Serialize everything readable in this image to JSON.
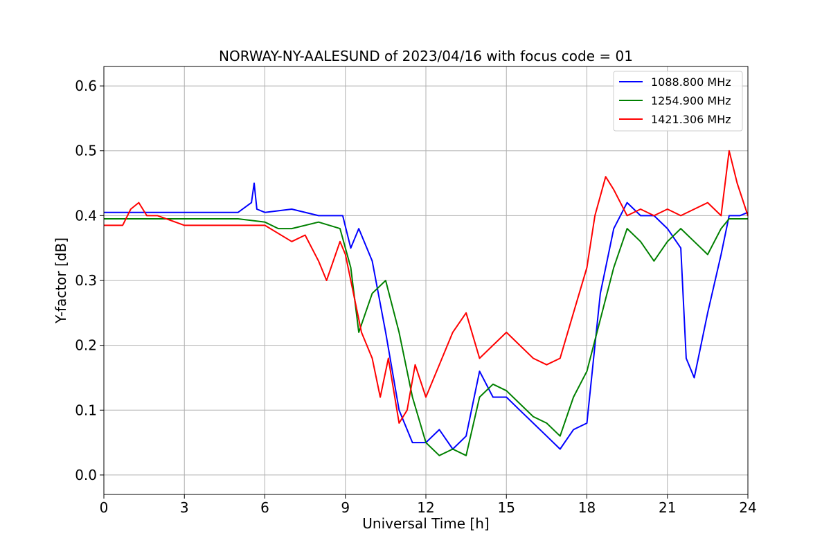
{
  "chart_data": {
    "type": "line",
    "title": "NORWAY-NY-AALESUND of 2023/04/16 with focus code = 01",
    "xlabel": "Universal Time [h]",
    "ylabel": "Y-factor [dB]",
    "xlim": [
      0,
      24
    ],
    "ylim": [
      -0.03,
      0.63
    ],
    "xticks": [
      0,
      3,
      6,
      9,
      12,
      15,
      18,
      21,
      24
    ],
    "yticks": [
      0.0,
      0.1,
      0.2,
      0.3,
      0.4,
      0.5,
      0.6
    ],
    "x_tick_labels": [
      "0",
      "3",
      "6",
      "9",
      "12",
      "15",
      "18",
      "21",
      "24"
    ],
    "y_tick_labels": [
      "0.0",
      "0.1",
      "0.2",
      "0.3",
      "0.4",
      "0.5",
      "0.6"
    ],
    "grid": true,
    "legend_position": "top-right",
    "series": [
      {
        "name": "1088.800 MHz",
        "color": "#0000ff",
        "x": [
          0,
          0.7,
          2.0,
          3.0,
          5.0,
          5.5,
          5.6,
          5.7,
          6.0,
          7.0,
          8.0,
          8.9,
          9.2,
          9.5,
          10.0,
          10.5,
          11.0,
          11.5,
          12.0,
          12.5,
          13.0,
          13.5,
          14.0,
          14.5,
          15.0,
          15.5,
          16.0,
          16.5,
          17.0,
          17.5,
          18.0,
          18.5,
          19.0,
          19.5,
          20.0,
          20.5,
          21.0,
          21.5,
          21.7,
          22.0,
          22.5,
          23.0,
          23.3,
          23.7,
          24.0
        ],
        "y": [
          0.405,
          0.405,
          0.405,
          0.405,
          0.405,
          0.42,
          0.45,
          0.41,
          0.405,
          0.41,
          0.4,
          0.4,
          0.35,
          0.38,
          0.33,
          0.22,
          0.1,
          0.05,
          0.05,
          0.07,
          0.04,
          0.06,
          0.16,
          0.12,
          0.12,
          0.1,
          0.08,
          0.06,
          0.04,
          0.07,
          0.08,
          0.28,
          0.38,
          0.42,
          0.4,
          0.4,
          0.38,
          0.35,
          0.18,
          0.15,
          0.25,
          0.34,
          0.4,
          0.4,
          0.405
        ]
      },
      {
        "name": "1254.900 MHz",
        "color": "#008000",
        "x": [
          0,
          0.7,
          2.0,
          3.0,
          5.0,
          6.0,
          6.5,
          7.0,
          8.0,
          8.8,
          9.2,
          9.5,
          10.0,
          10.5,
          11.0,
          11.5,
          12.0,
          12.5,
          13.0,
          13.5,
          14.0,
          14.5,
          15.0,
          15.5,
          16.0,
          16.5,
          17.0,
          17.5,
          18.0,
          18.5,
          19.0,
          19.5,
          20.0,
          20.5,
          21.0,
          21.5,
          22.0,
          22.5,
          23.0,
          23.3,
          24.0
        ],
        "y": [
          0.395,
          0.395,
          0.395,
          0.395,
          0.395,
          0.39,
          0.38,
          0.38,
          0.39,
          0.38,
          0.32,
          0.22,
          0.28,
          0.3,
          0.22,
          0.12,
          0.05,
          0.03,
          0.04,
          0.03,
          0.12,
          0.14,
          0.13,
          0.11,
          0.09,
          0.08,
          0.06,
          0.12,
          0.16,
          0.24,
          0.32,
          0.38,
          0.36,
          0.33,
          0.36,
          0.38,
          0.36,
          0.34,
          0.38,
          0.395,
          0.395
        ]
      },
      {
        "name": "1421.306 MHz",
        "color": "#ff0000",
        "x": [
          0,
          0.7,
          1.0,
          1.3,
          1.6,
          2.0,
          3.0,
          5.0,
          6.0,
          7.0,
          7.5,
          8.0,
          8.3,
          8.8,
          9.0,
          9.3,
          9.6,
          10.0,
          10.3,
          10.6,
          11.0,
          11.3,
          11.6,
          12.0,
          12.3,
          12.6,
          13.0,
          13.5,
          14.0,
          14.5,
          15.0,
          15.5,
          16.0,
          16.5,
          17.0,
          17.5,
          18.0,
          18.3,
          18.7,
          19.0,
          19.5,
          20.0,
          20.5,
          21.0,
          21.5,
          22.0,
          22.5,
          23.0,
          23.3,
          23.6,
          24.0
        ],
        "y": [
          0.385,
          0.385,
          0.41,
          0.42,
          0.4,
          0.4,
          0.385,
          0.385,
          0.385,
          0.36,
          0.37,
          0.33,
          0.3,
          0.36,
          0.34,
          0.28,
          0.22,
          0.18,
          0.12,
          0.18,
          0.08,
          0.1,
          0.17,
          0.12,
          0.15,
          0.18,
          0.22,
          0.25,
          0.18,
          0.2,
          0.22,
          0.2,
          0.18,
          0.17,
          0.18,
          0.25,
          0.32,
          0.4,
          0.46,
          0.44,
          0.4,
          0.41,
          0.4,
          0.41,
          0.4,
          0.41,
          0.42,
          0.4,
          0.5,
          0.45,
          0.4
        ]
      }
    ]
  }
}
